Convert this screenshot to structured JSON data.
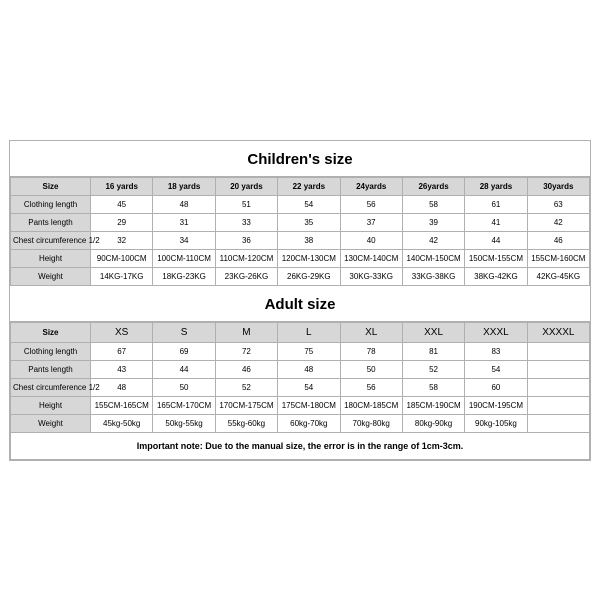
{
  "colors": {
    "border": "#b0b0b0",
    "header_bg": "#d7d7d7",
    "body_bg": "#ffffff"
  },
  "children": {
    "title": "Children's size",
    "headers": [
      "Size",
      "16 yards",
      "18 yards",
      "20 yards",
      "22 yards",
      "24yards",
      "26yards",
      "28 yards",
      "30yards"
    ],
    "rows": [
      {
        "label": "Clothing length",
        "vals": [
          "45",
          "48",
          "51",
          "54",
          "56",
          "58",
          "61",
          "63"
        ]
      },
      {
        "label": "Pants length",
        "vals": [
          "29",
          "31",
          "33",
          "35",
          "37",
          "39",
          "41",
          "42"
        ]
      },
      {
        "label": "Chest circumference 1/2",
        "vals": [
          "32",
          "34",
          "36",
          "38",
          "40",
          "42",
          "44",
          "46"
        ]
      },
      {
        "label": "Height",
        "vals": [
          "90CM-100CM",
          "100CM-110CM",
          "110CM-120CM",
          "120CM-130CM",
          "130CM-140CM",
          "140CM-150CM",
          "150CM-155CM",
          "155CM-160CM"
        ]
      },
      {
        "label": "Weight",
        "vals": [
          "14KG-17KG",
          "18KG-23KG",
          "23KG-26KG",
          "26KG-29KG",
          "30KG-33KG",
          "33KG-38KG",
          "38KG-42KG",
          "42KG-45KG"
        ]
      }
    ]
  },
  "adult": {
    "title": "Adult size",
    "headers": [
      "Size",
      "XS",
      "S",
      "M",
      "L",
      "XL",
      "XXL",
      "XXXL",
      "XXXXL"
    ],
    "rows": [
      {
        "label": "Clothing length",
        "vals": [
          "67",
          "69",
          "72",
          "75",
          "78",
          "81",
          "83",
          ""
        ]
      },
      {
        "label": "Pants length",
        "vals": [
          "43",
          "44",
          "46",
          "48",
          "50",
          "52",
          "54",
          ""
        ]
      },
      {
        "label": "Chest circumference 1/2",
        "vals": [
          "48",
          "50",
          "52",
          "54",
          "56",
          "58",
          "60",
          ""
        ]
      },
      {
        "label": "Height",
        "vals": [
          "155CM-165CM",
          "165CM-170CM",
          "170CM-175CM",
          "175CM-180CM",
          "180CM-185CM",
          "185CM-190CM",
          "190CM-195CM",
          ""
        ]
      },
      {
        "label": "Weight",
        "vals": [
          "45kg-50kg",
          "50kg-55kg",
          "55kg-60kg",
          "60kg-70kg",
          "70kg-80kg",
          "80kg-90kg",
          "90kg-105kg",
          ""
        ]
      }
    ]
  },
  "note": "Important note: Due to the manual size, the error is in the range of 1cm-3cm."
}
